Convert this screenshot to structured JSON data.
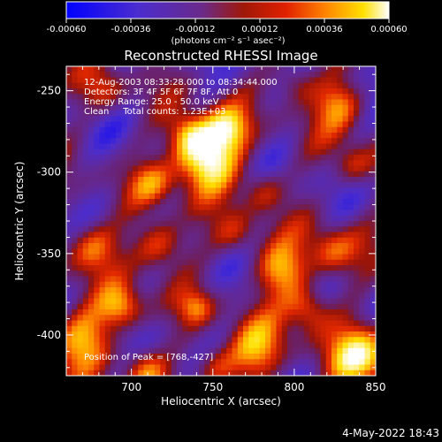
{
  "chart_data": {
    "type": "heatmap",
    "title": "Reconstructed RHESSI Image",
    "xlabel": "Heliocentric X (arcsec)",
    "ylabel": "Heliocentric Y (arcsec)",
    "xlim": [
      660,
      850
    ],
    "ylim": [
      -425,
      -235
    ],
    "x_ticks": [
      700,
      750,
      800,
      850
    ],
    "y_ticks": [
      -250,
      -300,
      -350,
      -400
    ],
    "colorbar": {
      "range": [
        -0.0006,
        0.0006
      ],
      "ticks": [
        "-0.00060",
        "-0.00036",
        "-0.00012",
        "0.00012",
        "0.00036",
        "0.00060"
      ],
      "ticks_values": [
        -0.0006,
        -0.00036,
        -0.00012,
        0.00012,
        0.00036,
        0.0006
      ],
      "label": "(photons cm⁻² s⁻¹ asec⁻²)"
    },
    "annotations": {
      "line1": "12-Aug-2003 08:33:28.000 to 08:34:44.000",
      "line2": "Detectors: 3F 4F 5F 6F 7F 8F, Att 0",
      "line3": "Energy Range: 25.0 - 50.0 keV",
      "line4": "Clean     Total counts: 1.23E+03",
      "peak": "Position of Peak = [768,-427]"
    },
    "footer_date": "4-May-2022 18:43",
    "grid": false,
    "colors": {
      "colormap": [
        "#0000ff",
        "#5a2da8",
        "#6a2a7a",
        "#8b1a10",
        "#d81a00",
        "#ff6a00",
        "#ffd000",
        "#ffffff"
      ]
    }
  }
}
